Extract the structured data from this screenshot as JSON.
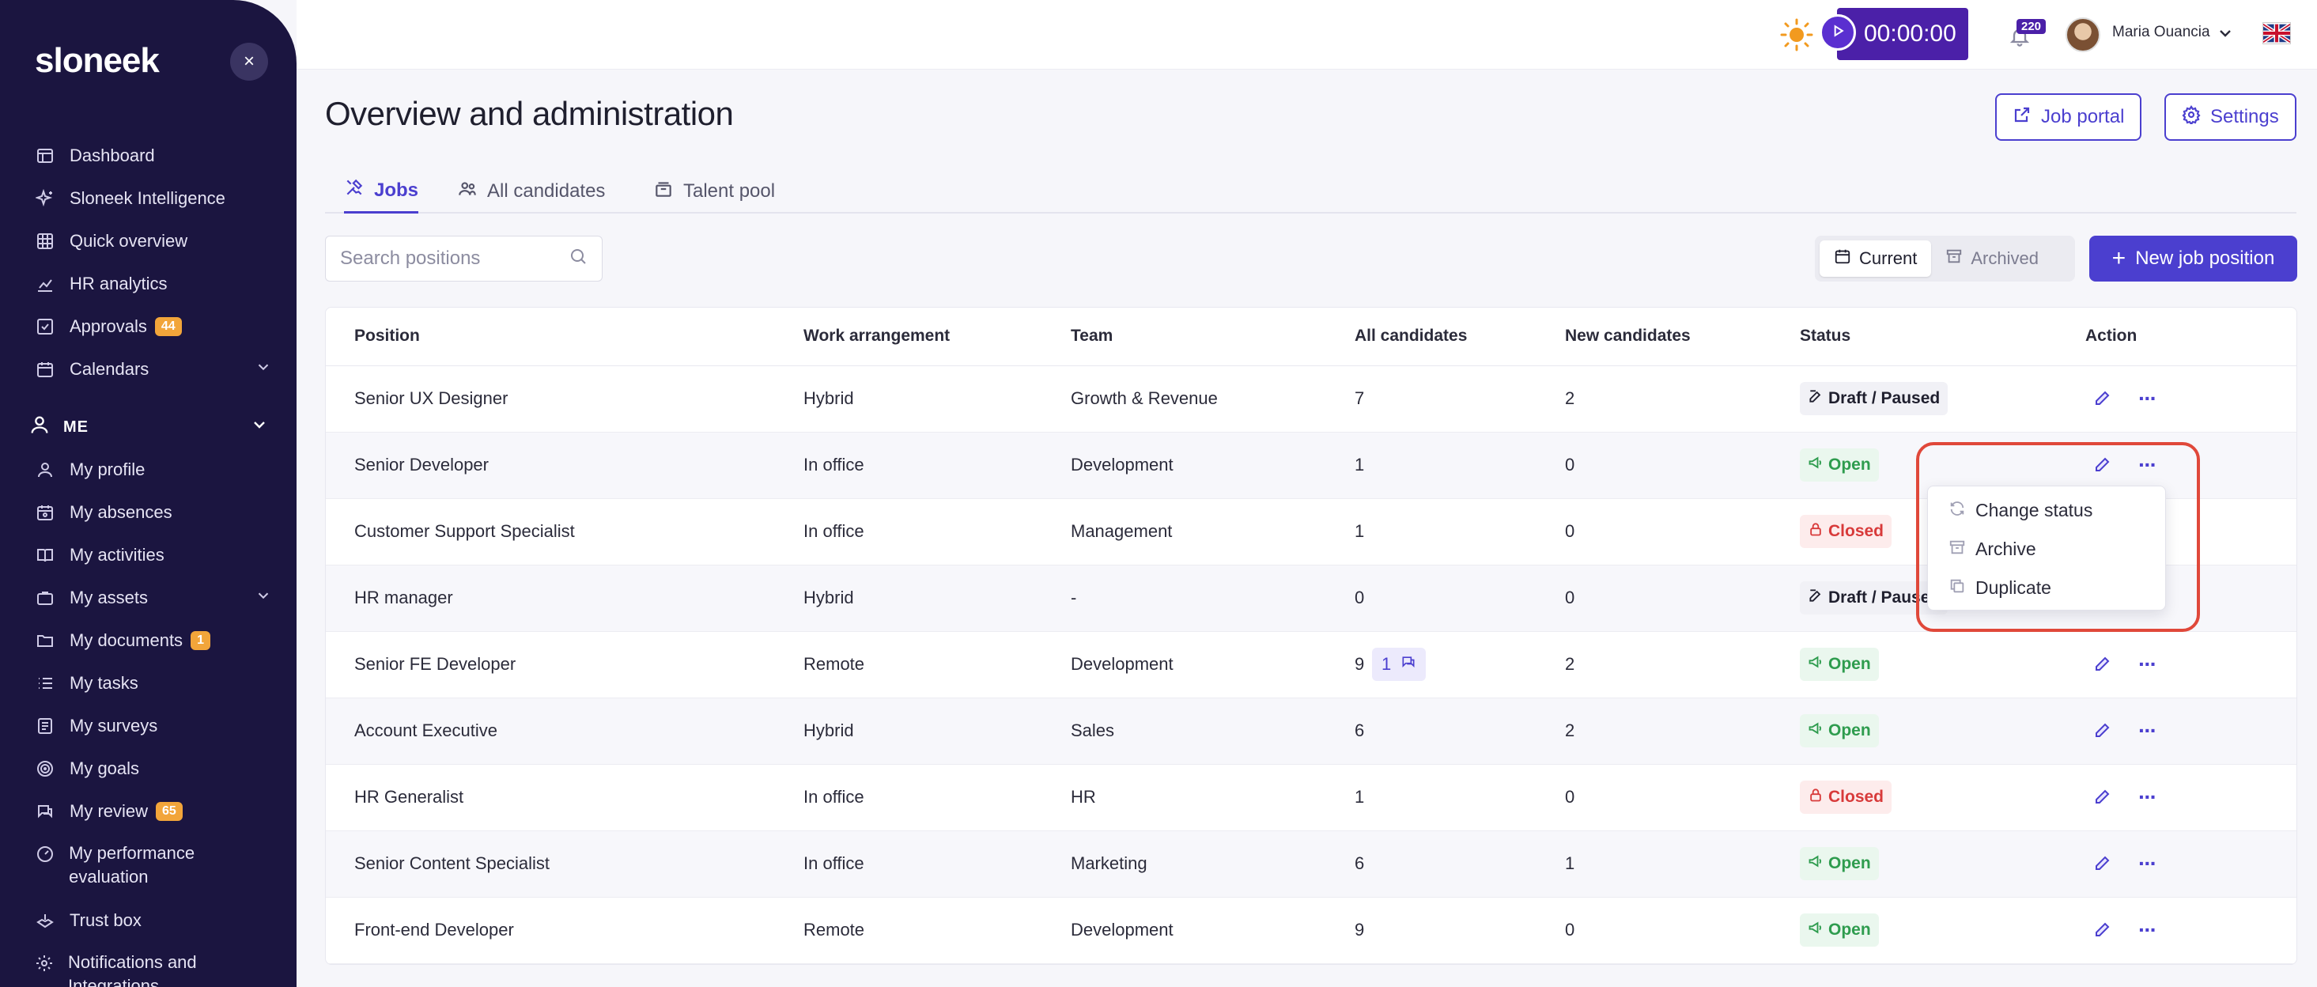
{
  "brand": {
    "logo": "sloneek",
    "close_label": "×"
  },
  "sidebar": {
    "items": [
      {
        "label": "Dashboard",
        "icon": "dashboard-icon"
      },
      {
        "label": "Sloneek Intelligence",
        "icon": "sparkle-icon"
      },
      {
        "label": "Quick overview",
        "icon": "grid-icon"
      },
      {
        "label": "HR analytics",
        "icon": "chart-icon"
      },
      {
        "label": "Approvals",
        "icon": "check-square-icon",
        "badge": "44"
      },
      {
        "label": "Calendars",
        "icon": "calendar-icon",
        "expandable": true
      }
    ],
    "section_me": "ME",
    "me_items": [
      {
        "label": "My profile",
        "icon": "user-icon"
      },
      {
        "label": "My absences",
        "icon": "calendar-user-icon"
      },
      {
        "label": "My activities",
        "icon": "book-icon"
      },
      {
        "label": "My assets",
        "icon": "briefcase-icon",
        "expandable": true
      },
      {
        "label": "My documents",
        "icon": "folder-icon",
        "badge": "1"
      },
      {
        "label": "My tasks",
        "icon": "tasks-icon"
      },
      {
        "label": "My surveys",
        "icon": "survey-icon"
      },
      {
        "label": "My goals",
        "icon": "target-icon"
      },
      {
        "label": "My review",
        "icon": "chat-icon",
        "badge": "65"
      },
      {
        "label": "My performance evaluation",
        "icon": "performance-icon"
      },
      {
        "label": "Trust box",
        "icon": "trust-icon"
      },
      {
        "label": "Notifications and Integrations",
        "icon": "gear-icon"
      }
    ]
  },
  "topbar": {
    "timer": "00:00:00",
    "notification_count": "220",
    "user_name": "Maria Ouancia"
  },
  "main": {
    "title": "Overview and administration",
    "job_portal_label": "Job portal",
    "settings_label": "Settings",
    "tabs": [
      {
        "label": "Jobs",
        "active": true
      },
      {
        "label": "All candidates",
        "active": false
      },
      {
        "label": "Talent pool",
        "active": false
      }
    ],
    "search_placeholder": "Search positions",
    "filter": {
      "current": "Current",
      "archived": "Archived"
    },
    "new_button": "New job position"
  },
  "table": {
    "headers": [
      "Position",
      "Work arrangement",
      "Team",
      "All candidates",
      "New candidates",
      "Status",
      "Action"
    ],
    "rows": [
      {
        "position": "Senior UX Designer",
        "work": "Hybrid",
        "team": "Growth & Revenue",
        "all": "7",
        "new": "2",
        "status": "Draft / Paused",
        "status_type": "draft"
      },
      {
        "position": "Senior Developer",
        "work": "In office",
        "team": "Development",
        "all": "1",
        "new": "0",
        "status": "Open",
        "status_type": "open"
      },
      {
        "position": "Customer Support Specialist",
        "work": "In office",
        "team": "Management",
        "all": "1",
        "new": "0",
        "status": "Closed",
        "status_type": "closed"
      },
      {
        "position": "HR manager",
        "work": "Hybrid",
        "team": "-",
        "all": "0",
        "new": "0",
        "status": "Draft / Paused",
        "status_type": "draft"
      },
      {
        "position": "Senior FE Developer",
        "work": "Remote",
        "team": "Development",
        "all": "9",
        "new": "2",
        "status": "Open",
        "status_type": "open",
        "comments": "1"
      },
      {
        "position": "Account Executive",
        "work": "Hybrid",
        "team": "Sales",
        "all": "6",
        "new": "2",
        "status": "Open",
        "status_type": "open"
      },
      {
        "position": "HR Generalist",
        "work": "In office",
        "team": "HR",
        "all": "1",
        "new": "0",
        "status": "Closed",
        "status_type": "closed"
      },
      {
        "position": "Senior Content Specialist",
        "work": "In office",
        "team": "Marketing",
        "all": "6",
        "new": "1",
        "status": "Open",
        "status_type": "open"
      },
      {
        "position": "Front-end Developer",
        "work": "Remote",
        "team": "Development",
        "all": "9",
        "new": "0",
        "status": "Open",
        "status_type": "open"
      }
    ]
  },
  "dropdown": {
    "items": [
      "Change status",
      "Archive",
      "Duplicate"
    ]
  },
  "colors": {
    "accent": "#4b3fcf",
    "sidebar": "#1b1540",
    "open": "#2e9c4e",
    "closed": "#d83a3a",
    "badge": "#f2a53a",
    "highlight": "#e0483a"
  }
}
